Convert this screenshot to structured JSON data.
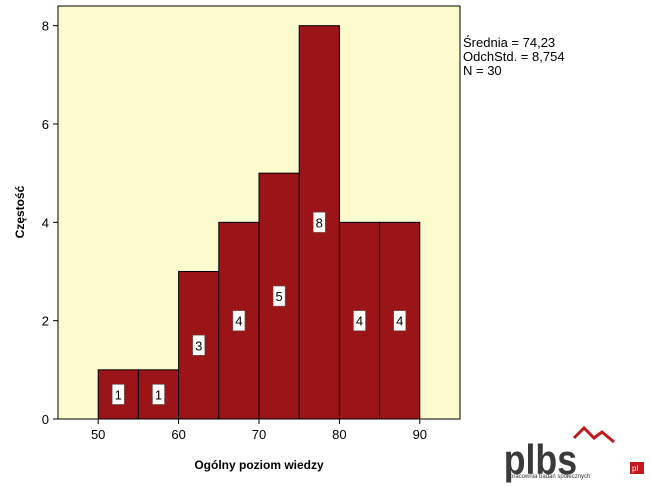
{
  "chart_data": {
    "type": "bar",
    "histogram": true,
    "bins": [
      {
        "from": 50,
        "to": 55,
        "count": 1
      },
      {
        "from": 55,
        "to": 60,
        "count": 1
      },
      {
        "from": 60,
        "to": 65,
        "count": 3
      },
      {
        "from": 65,
        "to": 70,
        "count": 4
      },
      {
        "from": 70,
        "to": 75,
        "count": 5
      },
      {
        "from": 75,
        "to": 80,
        "count": 8
      },
      {
        "from": 80,
        "to": 85,
        "count": 4
      },
      {
        "from": 85,
        "to": 90,
        "count": 4
      }
    ],
    "xlabel": "Ogólny poziom wiedzy",
    "ylabel": "Częstość",
    "xlim": [
      45,
      95
    ],
    "ylim": [
      0,
      8.4
    ],
    "xticks": [
      50,
      60,
      70,
      80,
      90
    ],
    "yticks": [
      0,
      2,
      4,
      6,
      8
    ],
    "grid": false,
    "colors": {
      "bar": "#9b1418",
      "plot_bg": "#fbfbcd",
      "label_box": "#ffffff"
    }
  },
  "stats": {
    "mean": "Średnia = 74,23",
    "stddev": "OdchStd. = 8,754",
    "n": "N = 30"
  },
  "watermark": {
    "brand": "plbs",
    "tagline": "pracownia badań społecznych",
    "site_tld": "pl"
  }
}
